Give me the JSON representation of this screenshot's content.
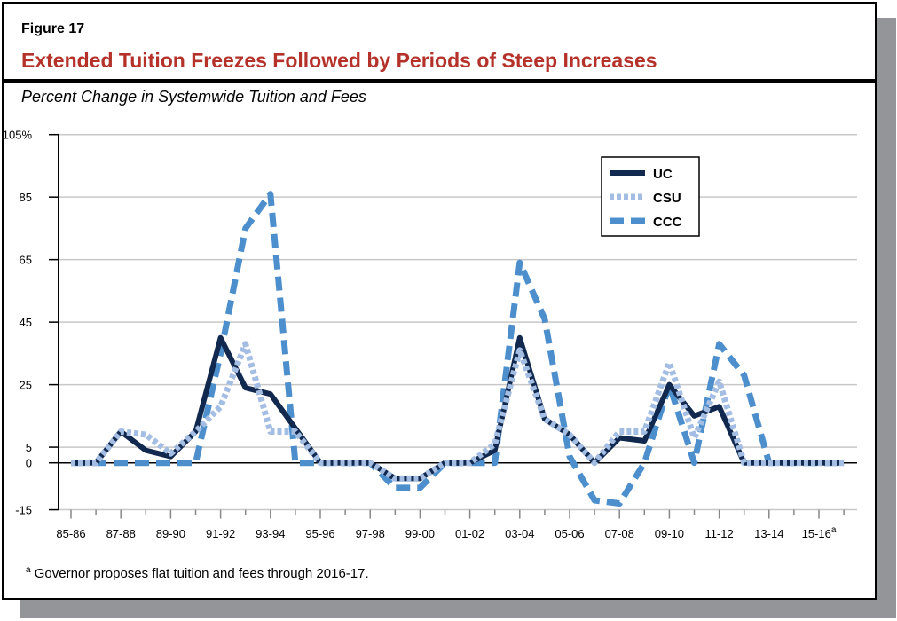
{
  "figure_label": "Figure 17",
  "title": "Extended Tuition Freezes Followed by Periods of Steep Increases",
  "subtitle": "Percent Change in Systemwide Tuition and Fees",
  "footnote": {
    "marker": "a",
    "text": "Governor proposes flat tuition and fees through 2016-17."
  },
  "colors": {
    "title": "#b5322b",
    "UC": "#12294f",
    "CSU": "#a4bde3",
    "CCC": "#4d8fcc",
    "shadow": "#939598"
  },
  "chart_data": {
    "type": "line",
    "title": "Extended Tuition Freezes Followed by Periods of Steep Increases",
    "ylabel": "Percent Change in Systemwide Tuition and Fees",
    "xlabel": "",
    "ylim": [
      -15,
      105
    ],
    "yticks": [
      -15,
      0,
      5,
      25,
      45,
      65,
      85,
      105
    ],
    "ytick_labels": [
      "-15",
      "0",
      "5",
      "25",
      "45",
      "65",
      "85",
      "105%"
    ],
    "grid": "horizontal",
    "legend": "top-right",
    "categories": [
      "85-86",
      "86-87",
      "87-88",
      "88-89",
      "89-90",
      "90-91",
      "91-92",
      "92-93",
      "93-94",
      "94-95",
      "95-96",
      "96-97",
      "97-98",
      "98-99",
      "99-00",
      "00-01",
      "01-02",
      "02-03",
      "03-04",
      "04-05",
      "05-06",
      "06-07",
      "07-08",
      "08-09",
      "09-10",
      "10-11",
      "11-12",
      "12-13",
      "13-14",
      "14-15",
      "15-16",
      "16-17"
    ],
    "xtick_labels": [
      "85-86",
      "87-88",
      "89-90",
      "91-92",
      "93-94",
      "95-96",
      "97-98",
      "99-00",
      "01-02",
      "03-04",
      "05-06",
      "07-08",
      "09-10",
      "11-12",
      "13-14",
      "15-16"
    ],
    "xtick_superscript": {
      "15-16": "a"
    },
    "series": [
      {
        "name": "UC",
        "style": "solid",
        "values": [
          0,
          0,
          10,
          4,
          2,
          10,
          40,
          24,
          22,
          11,
          0,
          0,
          0,
          -5,
          -5,
          0,
          0,
          4,
          40,
          14,
          9,
          0,
          8,
          7,
          25,
          15,
          18,
          0,
          0,
          0,
          0,
          0
        ]
      },
      {
        "name": "CSU",
        "style": "dotted",
        "values": [
          0,
          0,
          10,
          9,
          3,
          10,
          18,
          38,
          10,
          10,
          0,
          0,
          0,
          -5,
          -5,
          0,
          0,
          6,
          36,
          14,
          9,
          0,
          10,
          10,
          32,
          8,
          26,
          0,
          0,
          0,
          0,
          0
        ]
      },
      {
        "name": "CCC",
        "style": "dashed",
        "values": [
          0,
          0,
          0,
          0,
          0,
          0,
          35,
          75,
          86,
          0,
          0,
          0,
          0,
          -8,
          -8,
          0,
          0,
          0,
          64,
          46,
          2,
          -12,
          -13,
          0,
          25,
          0,
          38,
          28,
          0,
          0,
          0,
          0
        ]
      }
    ]
  }
}
